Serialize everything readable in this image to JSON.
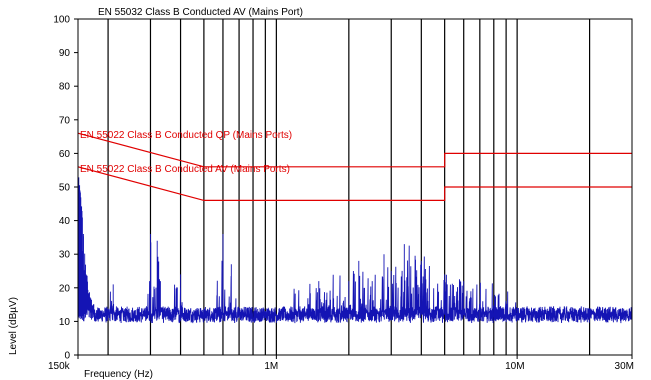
{
  "chart_data": {
    "type": "line",
    "title": "EN 55032 Class B Conducted AV (Mains Port)",
    "xlabel": "Frequency (Hz)",
    "ylabel": "Level (dBµV)",
    "x_scale": "log",
    "xlim": [
      150000,
      30000000
    ],
    "ylim": [
      0,
      100
    ],
    "x_ticks": [
      {
        "value": 150000,
        "label": "150k"
      },
      {
        "value": 1000000,
        "label": "1M"
      },
      {
        "value": 10000000,
        "label": "10M"
      },
      {
        "value": 30000000,
        "label": "30M"
      }
    ],
    "y_ticks": [
      0,
      10,
      20,
      30,
      40,
      50,
      60,
      70,
      80,
      90,
      100
    ],
    "grid": "vertical log-decade lines at 1-9 ×10^n; no horizontal grid",
    "colors": {
      "spectrum": "#1414b4",
      "limits": "#e00000",
      "grid": "#000000"
    },
    "limit_lines": [
      {
        "name": "EN 55022 Class B Conducted QP (Mains Ports)",
        "points": [
          [
            150000,
            66
          ],
          [
            500000,
            56
          ],
          [
            5000000,
            56
          ],
          [
            5000000,
            60
          ],
          [
            30000000,
            60
          ]
        ]
      },
      {
        "name": "EN 55022 Class B Conducted AV (Mains Ports)",
        "points": [
          [
            150000,
            56
          ],
          [
            500000,
            46
          ],
          [
            5000000,
            46
          ],
          [
            5000000,
            50
          ],
          [
            30000000,
            50
          ]
        ]
      }
    ],
    "series": [
      {
        "values": [
          [
            150000,
            55
          ],
          [
            152000,
            50
          ],
          [
            155000,
            44
          ],
          [
            158000,
            36
          ],
          [
            162000,
            24
          ],
          [
            168000,
            17
          ],
          [
            175000,
            14
          ],
          [
            185000,
            15
          ],
          [
            200000,
            18
          ],
          [
            210000,
            21
          ],
          [
            225000,
            14
          ],
          [
            250000,
            13
          ],
          [
            280000,
            14
          ],
          [
            300000,
            36
          ],
          [
            310000,
            20
          ],
          [
            320000,
            34
          ],
          [
            330000,
            22
          ],
          [
            350000,
            14
          ],
          [
            400000,
            24
          ],
          [
            420000,
            14
          ],
          [
            500000,
            12
          ],
          [
            550000,
            14
          ],
          [
            600000,
            36
          ],
          [
            620000,
            15
          ],
          [
            650000,
            27
          ],
          [
            700000,
            14
          ],
          [
            800000,
            16
          ],
          [
            900000,
            14
          ],
          [
            1000000,
            13
          ],
          [
            1200000,
            19
          ],
          [
            1500000,
            22
          ],
          [
            2000000,
            22
          ],
          [
            2200000,
            28
          ],
          [
            2500000,
            22
          ],
          [
            2800000,
            30
          ],
          [
            3000000,
            25
          ],
          [
            3400000,
            33
          ],
          [
            4000000,
            28
          ],
          [
            5000000,
            24
          ],
          [
            6000000,
            22
          ],
          [
            8000000,
            20
          ],
          [
            10000000,
            18
          ],
          [
            15000000,
            17
          ],
          [
            20000000,
            16
          ],
          [
            30000000,
            16
          ]
        ],
        "baseline": 12
      }
    ]
  }
}
